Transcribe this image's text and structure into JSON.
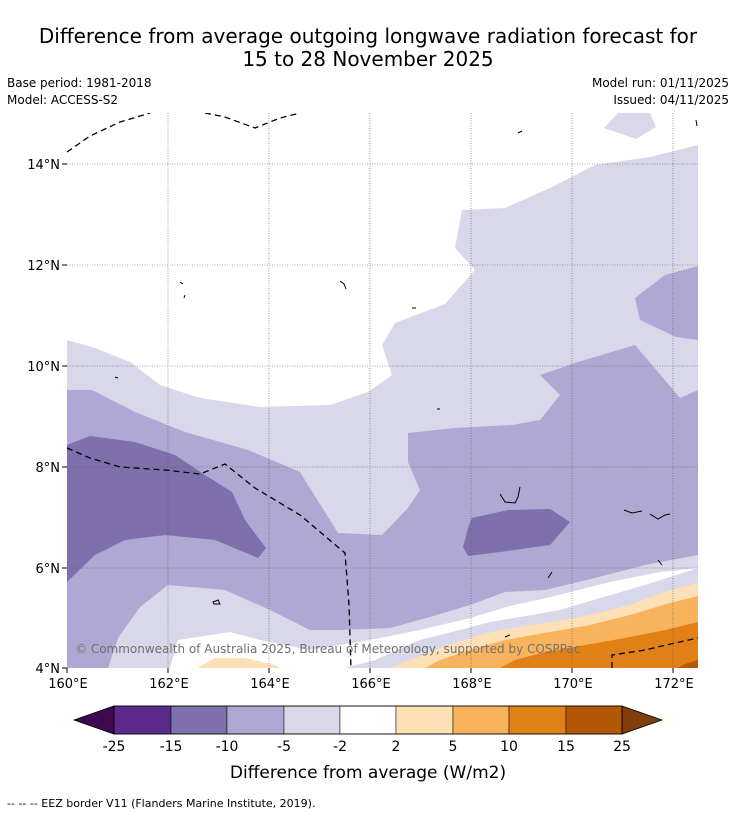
{
  "title_line1": "Difference from average outgoing longwave radiation forecast for",
  "title_line2": "15 to 28 November 2025",
  "base_period": "Base period: 1981-2018",
  "model": "Model: ACCESS-S2",
  "model_run": "Model run: 01/11/2025",
  "issued": "Issued: 04/11/2025",
  "copyright": "© Commonwealth of Australia 2025, Bureau of Meteorology, supported by COSPPac",
  "x_ticks": [
    "160°E",
    "162°E",
    "164°E",
    "166°E",
    "168°E",
    "170°E",
    "172°E"
  ],
  "y_ticks": [
    "14°N",
    "12°N",
    "10°N",
    "8°N",
    "6°N",
    "4°N"
  ],
  "colorbar": {
    "label": "Difference from average (W/m2)",
    "ticks": [
      "-25",
      "-15",
      "-10",
      "-5",
      "-2",
      "2",
      "5",
      "10",
      "15",
      "25"
    ],
    "colors": [
      "#3d0a50",
      "#5b2a8c",
      "#7f6fac",
      "#afa8d2",
      "#d8d8ea",
      "#ffffff",
      "#fde0b6",
      "#f9b35c",
      "#e08016",
      "#b45808",
      "#7f3e0a"
    ]
  },
  "footer": "--  --  -- EEZ border V11 (Flanders Marine Institute, 2019)."
}
